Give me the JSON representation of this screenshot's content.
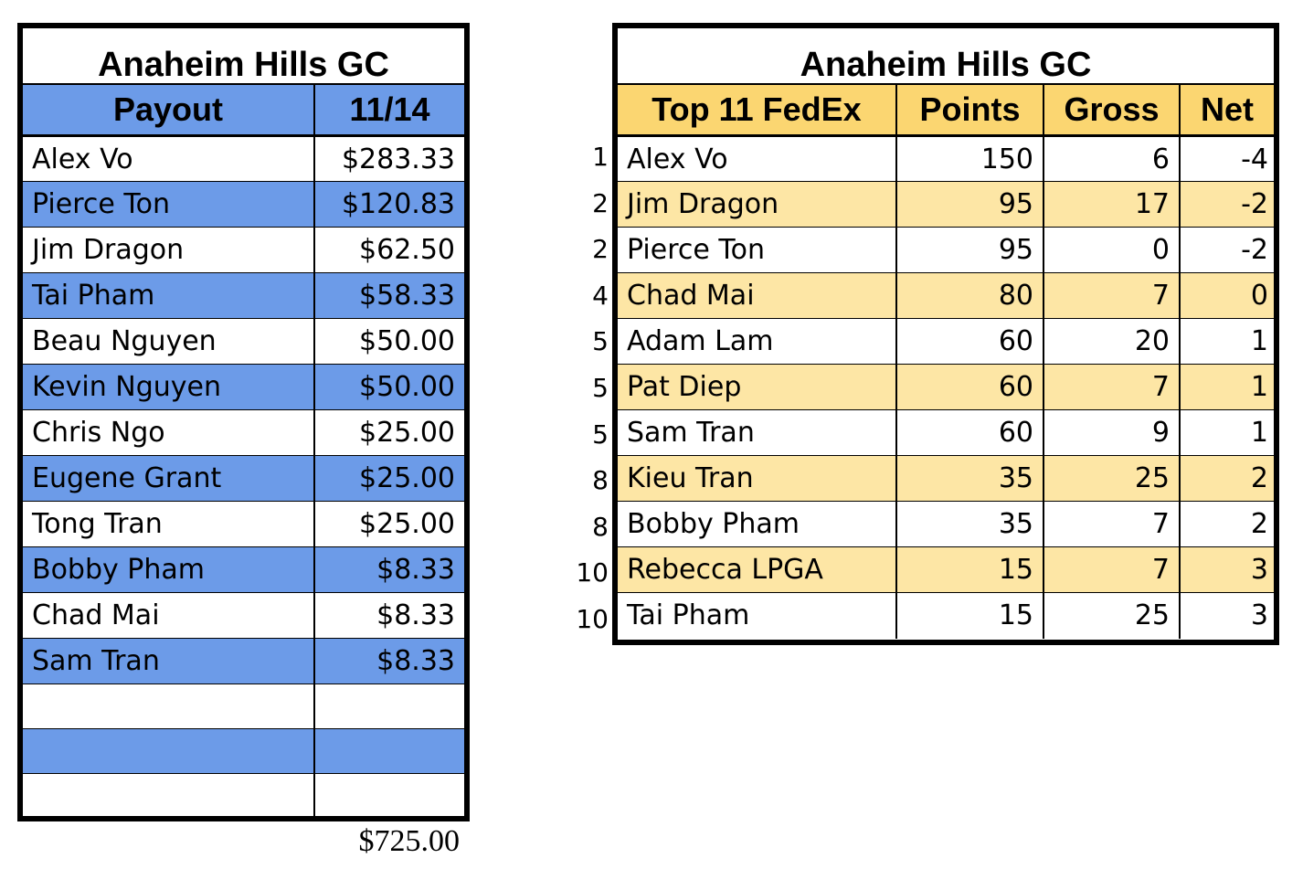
{
  "payout": {
    "title": "Anaheim Hills GC",
    "headers": [
      "Payout",
      "11/14"
    ],
    "rows": [
      {
        "name": "Alex Vo",
        "amount": "$283.33"
      },
      {
        "name": "Pierce Ton",
        "amount": "$120.83"
      },
      {
        "name": "Jim Dragon",
        "amount": "$62.50"
      },
      {
        "name": "Tai Pham",
        "amount": "$58.33"
      },
      {
        "name": "Beau Nguyen",
        "amount": "$50.00"
      },
      {
        "name": "Kevin Nguyen",
        "amount": "$50.00"
      },
      {
        "name": "Chris Ngo",
        "amount": "$25.00"
      },
      {
        "name": "Eugene Grant",
        "amount": "$25.00"
      },
      {
        "name": "Tong Tran",
        "amount": "$25.00"
      },
      {
        "name": "Bobby Pham",
        "amount": "$8.33"
      },
      {
        "name": "Chad Mai",
        "amount": "$8.33"
      },
      {
        "name": "Sam Tran",
        "amount": "$8.33"
      },
      {
        "name": "",
        "amount": ""
      },
      {
        "name": "",
        "amount": ""
      },
      {
        "name": "",
        "amount": ""
      }
    ],
    "total": "$725.00",
    "shade_color": "#6c9be8"
  },
  "fedex": {
    "title": "Anaheim Hills GC",
    "headers": [
      "Top 11 FedEx",
      "Points",
      "Gross",
      "Net"
    ],
    "rows": [
      {
        "rank": "1",
        "name": "Alex Vo",
        "points": "150",
        "gross": "6",
        "net": "-4"
      },
      {
        "rank": "2",
        "name": "Jim Dragon",
        "points": "95",
        "gross": "17",
        "net": "-2"
      },
      {
        "rank": "2",
        "name": "Pierce Ton",
        "points": "95",
        "gross": "0",
        "net": "-2"
      },
      {
        "rank": "4",
        "name": "Chad Mai",
        "points": "80",
        "gross": "7",
        "net": "0"
      },
      {
        "rank": "5",
        "name": "Adam Lam",
        "points": "60",
        "gross": "20",
        "net": "1"
      },
      {
        "rank": "5",
        "name": "Pat Diep",
        "points": "60",
        "gross": "7",
        "net": "1"
      },
      {
        "rank": "5",
        "name": "Sam Tran",
        "points": "60",
        "gross": "9",
        "net": "1"
      },
      {
        "rank": "8",
        "name": "Kieu Tran",
        "points": "35",
        "gross": "25",
        "net": "2"
      },
      {
        "rank": "8",
        "name": "Bobby Pham",
        "points": "35",
        "gross": "7",
        "net": "2"
      },
      {
        "rank": "10",
        "name": "Rebecca LPGA",
        "points": "15",
        "gross": "7",
        "net": "3"
      },
      {
        "rank": "10",
        "name": "Tai Pham",
        "points": "15",
        "gross": "25",
        "net": "3"
      }
    ],
    "header_color": "#fbd671",
    "shade_color": "#fde6a5"
  }
}
